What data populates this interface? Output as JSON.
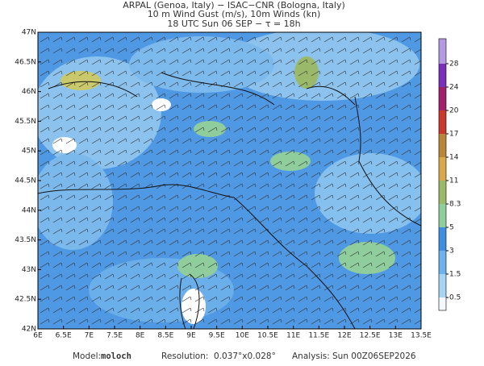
{
  "header": {
    "lines": [
      "ARPAL (Genoa, Italy)  −  ISAC−CNR (Bologna, Italy)",
      "10 m Wind Gust (m/s), 10m Winds (kn)",
      "18 UTC Sun 06 SEP  −  τ = 18h"
    ]
  },
  "map": {
    "lon_labels": [
      "6E",
      "6.5E",
      "7E",
      "7.5E",
      "8E",
      "8.5E",
      "9E",
      "9.5E",
      "10E",
      "10.5E",
      "11E",
      "11.5E",
      "12E",
      "12.5E",
      "13E",
      "13.5E"
    ],
    "lat_labels": [
      "42N",
      "42.5N",
      "43N",
      "43.5N",
      "44N",
      "44.5N",
      "45N",
      "45.5N",
      "46N",
      "46.5N",
      "47N"
    ]
  },
  "colorbar": {
    "labels": [
      "0.5",
      "1.5",
      "3",
      "5",
      "8.3",
      "11",
      "14",
      "17",
      "20",
      "24",
      "28"
    ]
  },
  "footer": {
    "model_label": "Model:",
    "model": "moloch",
    "resolution_label": "Resolution:",
    "resolution": "0.037°x0.028°",
    "analysis_label": "Analysis:",
    "analysis": "Sun 00Z06SEP2026"
  }
}
